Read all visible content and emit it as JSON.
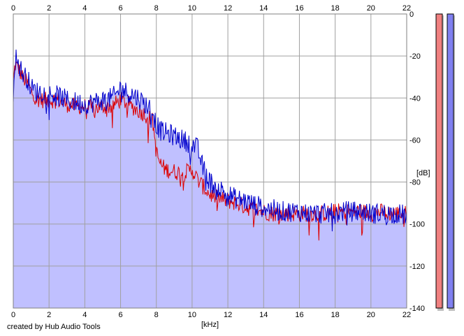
{
  "chart_data": {
    "type": "area",
    "title": "",
    "xlabel": "[kHz]",
    "ylabel": "[dB]",
    "x_ticks": [
      0,
      2,
      4,
      6,
      8,
      10,
      12,
      14,
      16,
      18,
      20,
      22
    ],
    "y_ticks": [
      0,
      -20,
      -40,
      -60,
      -80,
      -100,
      -120,
      -140
    ],
    "xlim": [
      0,
      22
    ],
    "ylim": [
      -140,
      0
    ],
    "grid": true,
    "series": [
      {
        "color": "#dd0000",
        "x": [
          0,
          0.1,
          0.3,
          0.5,
          0.8,
          1.0,
          1.3,
          1.6,
          2.0,
          2.5,
          3.0,
          3.5,
          4.0,
          4.5,
          5.0,
          5.5,
          6.0,
          6.3,
          6.6,
          7.0,
          7.4,
          7.8,
          8.0,
          8.2,
          8.5,
          9.0,
          9.5,
          10.0,
          10.3,
          10.6,
          11.0,
          11.5,
          12.0,
          12.5,
          13.0,
          13.5,
          14.0,
          14.5,
          15.0,
          15.5,
          16.0,
          16.5,
          17.0,
          17.5,
          18.0,
          18.5,
          19.0,
          19.5,
          20.0,
          20.5,
          21.0,
          21.5,
          22.0
        ],
        "values": [
          -33,
          -24,
          -26,
          -30,
          -33,
          -37,
          -40,
          -41,
          -41,
          -41,
          -43,
          -44,
          -44,
          -45,
          -44,
          -44,
          -41,
          -42,
          -44,
          -46,
          -48,
          -51,
          -66,
          -71,
          -74,
          -75,
          -76,
          -74,
          -79,
          -82,
          -86,
          -88,
          -89,
          -90,
          -92,
          -93,
          -94,
          -95,
          -95,
          -95,
          -95,
          -95,
          -95,
          -95,
          -94,
          -94,
          -94,
          -94,
          -95,
          -94,
          -95,
          -95,
          -95
        ],
        "noise": 4
      },
      {
        "color": "#0000cc",
        "x": [
          0,
          0.1,
          0.3,
          0.5,
          0.8,
          1.0,
          1.3,
          1.6,
          2.0,
          2.5,
          3.0,
          3.5,
          4.0,
          4.5,
          5.0,
          5.5,
          5.8,
          6.0,
          6.3,
          6.6,
          7.0,
          7.4,
          7.8,
          8.0,
          8.3,
          8.7,
          9.0,
          9.5,
          10.0,
          10.3,
          10.6,
          11.0,
          11.5,
          12.0,
          12.5,
          13.0,
          13.5,
          14.0,
          14.5,
          15.0,
          15.5,
          16.0,
          16.5,
          17.0,
          17.5,
          18.0,
          18.5,
          19.0,
          19.5,
          20.0,
          20.5,
          21.0,
          21.5,
          22.0
        ],
        "values": [
          -38,
          -20,
          -24,
          -28,
          -31,
          -35,
          -37,
          -37,
          -38,
          -39,
          -41,
          -42,
          -43,
          -42,
          -41,
          -40,
          -38,
          -35,
          -37,
          -38,
          -40,
          -43,
          -46,
          -53,
          -56,
          -57,
          -58,
          -60,
          -62,
          -64,
          -73,
          -80,
          -83,
          -86,
          -88,
          -89,
          -91,
          -92,
          -93,
          -94,
          -94,
          -94,
          -95,
          -95,
          -95,
          -95,
          -94,
          -94,
          -94,
          -95,
          -95,
          -95,
          -95,
          -96
        ],
        "noise": 5
      }
    ],
    "area_fill_color": "#c0c0ff",
    "meters": [
      {
        "color": "#f08080"
      },
      {
        "color": "#8080f0"
      }
    ]
  },
  "footer": {
    "credit": "created by Hub Audio Tools"
  }
}
